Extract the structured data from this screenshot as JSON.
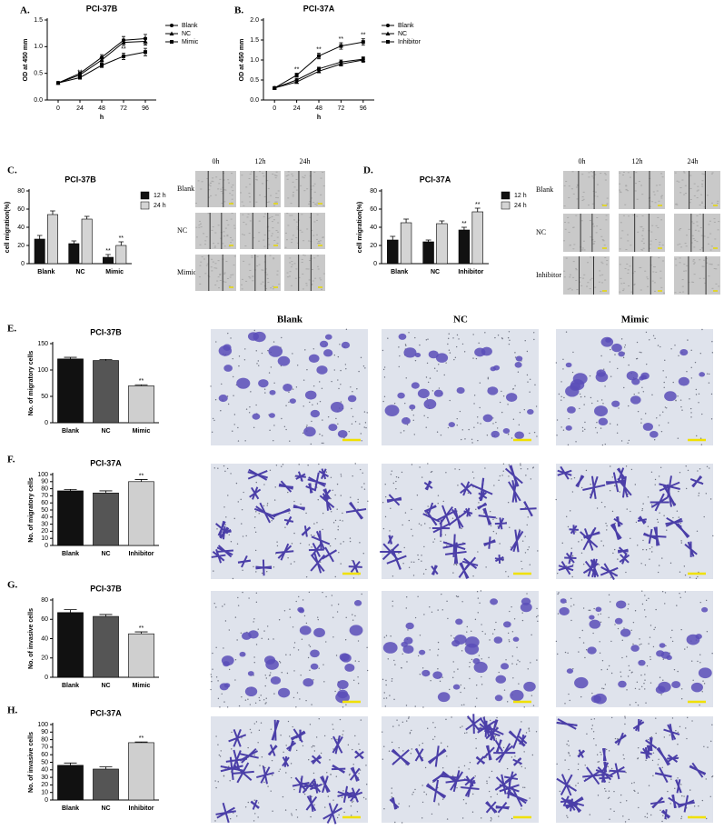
{
  "chart_data": [
    {
      "type": "line",
      "panel": "A.",
      "title": "PCI-37B",
      "xlabel": "h",
      "ylabel": "OD at 450 mm",
      "x": [
        0,
        24,
        48,
        72,
        96
      ],
      "xlim": [
        -12,
        108
      ],
      "xticks": [
        0,
        24,
        48,
        72,
        96
      ],
      "ylim": [
        0,
        1.5
      ],
      "yticks": [
        {
          "value": 0,
          "label": "0.0"
        },
        0.5,
        {
          "value": 1,
          "label": "1.0"
        },
        1.5
      ],
      "series": [
        {
          "name": "Blank",
          "color": "#000000",
          "marker": "circle",
          "values": [
            0.32,
            0.5,
            0.8,
            1.12,
            1.15
          ],
          "errors": [
            0.02,
            0.03,
            0.05,
            0.07,
            0.08
          ]
        },
        {
          "name": "NC",
          "color": "#000000",
          "marker": "triangle",
          "values": [
            0.32,
            0.47,
            0.75,
            1.08,
            1.1
          ],
          "errors": [
            0.02,
            0.03,
            0.05,
            0.06,
            0.07
          ]
        },
        {
          "name": "Mimic",
          "color": "#000000",
          "marker": "square",
          "values": [
            0.32,
            0.42,
            0.65,
            0.82,
            0.9
          ],
          "errors": [
            0.02,
            0.03,
            0.04,
            0.06,
            0.07
          ],
          "significance": [
            null,
            "**",
            "**",
            "**",
            "**"
          ]
        }
      ]
    },
    {
      "type": "line",
      "panel": "B.",
      "title": "PCI-37A",
      "xlabel": "h",
      "ylabel": "OD at 450 mm",
      "x": [
        0,
        24,
        48,
        72,
        96
      ],
      "xlim": [
        -12,
        108
      ],
      "xticks": [
        0,
        24,
        48,
        72,
        96
      ],
      "ylim": [
        0,
        2.0
      ],
      "yticks": [
        {
          "value": 0,
          "label": "0.0"
        },
        0.5,
        {
          "value": 1,
          "label": "1.0"
        },
        1.5,
        {
          "value": 2,
          "label": "2.0"
        }
      ],
      "series": [
        {
          "name": "Blank",
          "color": "#000000",
          "marker": "circle",
          "values": [
            0.3,
            0.5,
            0.78,
            0.95,
            1.02
          ],
          "errors": [
            0.02,
            0.03,
            0.04,
            0.05,
            0.06
          ]
        },
        {
          "name": "NC",
          "color": "#000000",
          "marker": "triangle",
          "values": [
            0.3,
            0.45,
            0.72,
            0.9,
            1.0
          ],
          "errors": [
            0.02,
            0.03,
            0.04,
            0.05,
            0.06
          ]
        },
        {
          "name": "Inhibitor",
          "color": "#000000",
          "marker": "square",
          "values": [
            0.3,
            0.62,
            1.1,
            1.35,
            1.45
          ],
          "errors": [
            0.02,
            0.05,
            0.07,
            0.08,
            0.08
          ],
          "significance": [
            null,
            "**",
            "**",
            "**",
            "**"
          ]
        }
      ]
    },
    {
      "type": "grouped_bar",
      "panel": "C.",
      "title": "PCI-37B",
      "ylabel": "cell migration(%)",
      "categories": [
        "Blank",
        "NC",
        "Mimic"
      ],
      "ylim": [
        0,
        80
      ],
      "yticks": [
        0,
        20,
        40,
        60,
        80
      ],
      "series": [
        {
          "name": "12 h",
          "color": "#111111",
          "values": [
            27,
            22,
            7
          ],
          "errors": [
            4,
            3,
            3
          ],
          "significance": [
            null,
            null,
            "**"
          ]
        },
        {
          "name": "24 h",
          "color": "#d4d4d4",
          "values": [
            54,
            49,
            20
          ],
          "errors": [
            4,
            3,
            4
          ],
          "significance": [
            null,
            null,
            "**"
          ]
        }
      ]
    },
    {
      "type": "grouped_bar",
      "panel": "D.",
      "title": "PCI-37A",
      "ylabel": "cell migration(%)",
      "categories": [
        "Blank",
        "NC",
        "Inhibitor"
      ],
      "ylim": [
        0,
        80
      ],
      "yticks": [
        0,
        20,
        40,
        60,
        80
      ],
      "series": [
        {
          "name": "12 h",
          "color": "#111111",
          "values": [
            26,
            24,
            37
          ],
          "errors": [
            4,
            2,
            3
          ],
          "significance": [
            null,
            null,
            "**"
          ]
        },
        {
          "name": "24 h",
          "color": "#d4d4d4",
          "values": [
            45,
            44,
            57
          ],
          "errors": [
            4,
            3,
            4
          ],
          "significance": [
            null,
            null,
            "**"
          ]
        }
      ]
    },
    {
      "type": "bar",
      "panel": "E.",
      "title": "PCI-37B",
      "ylabel": "No. of migratory cells",
      "categories": [
        "Blank",
        "NC",
        "Mimic"
      ],
      "values": [
        121,
        118,
        70
      ],
      "errors": [
        3,
        2,
        2
      ],
      "colors": [
        "#111111",
        "#555555",
        "#cfcfcf"
      ],
      "significance": [
        null,
        null,
        "**"
      ],
      "ylim": [
        0,
        150
      ],
      "yticks": [
        0,
        50,
        100,
        150
      ]
    },
    {
      "type": "bar",
      "panel": "F.",
      "title": "PCI-37A",
      "ylabel": "No. of migratory cells",
      "categories": [
        "Blank",
        "NC",
        "Inhibitor"
      ],
      "values": [
        77,
        74,
        90
      ],
      "errors": [
        2,
        3,
        3
      ],
      "colors": [
        "#111111",
        "#555555",
        "#cfcfcf"
      ],
      "significance": [
        null,
        null,
        "**"
      ],
      "ylim": [
        0,
        100
      ],
      "yticks": [
        0,
        10,
        20,
        30,
        40,
        50,
        60,
        70,
        80,
        90,
        100
      ]
    },
    {
      "type": "bar",
      "panel": "G.",
      "title": "PCI-37B",
      "ylabel": "No. of invasive cells",
      "categories": [
        "Blank",
        "NC",
        "Mimic"
      ],
      "values": [
        67,
        63,
        45
      ],
      "errors": [
        3,
        2,
        2
      ],
      "colors": [
        "#111111",
        "#555555",
        "#cfcfcf"
      ],
      "significance": [
        null,
        null,
        "**"
      ],
      "ylim": [
        0,
        80
      ],
      "yticks": [
        0,
        20,
        40,
        60,
        80
      ]
    },
    {
      "type": "bar",
      "panel": "H.",
      "title": "PCI-37A",
      "ylabel": "No. of invasive cells",
      "categories": [
        "Blank",
        "NC",
        "Inhibitor"
      ],
      "values": [
        46,
        41,
        76
      ],
      "errors": [
        3,
        3,
        1
      ],
      "colors": [
        "#111111",
        "#555555",
        "#cfcfcf"
      ],
      "significance": [
        null,
        null,
        "**"
      ],
      "ylim": [
        0,
        100
      ],
      "yticks": [
        0,
        10,
        20,
        30,
        40,
        50,
        60,
        70,
        80,
        90,
        100
      ]
    }
  ],
  "wound_images": [
    {
      "columns": [
        "0h",
        "12h",
        "24h"
      ],
      "rows": [
        "Blank",
        "NC",
        "Mimic"
      ]
    },
    {
      "columns": [
        "0h",
        "12h",
        "24h"
      ],
      "rows": [
        "Blank",
        "NC",
        "Inhibitor"
      ]
    }
  ],
  "transwell_columns": [
    "Blank",
    "NC",
    "Mimic"
  ]
}
